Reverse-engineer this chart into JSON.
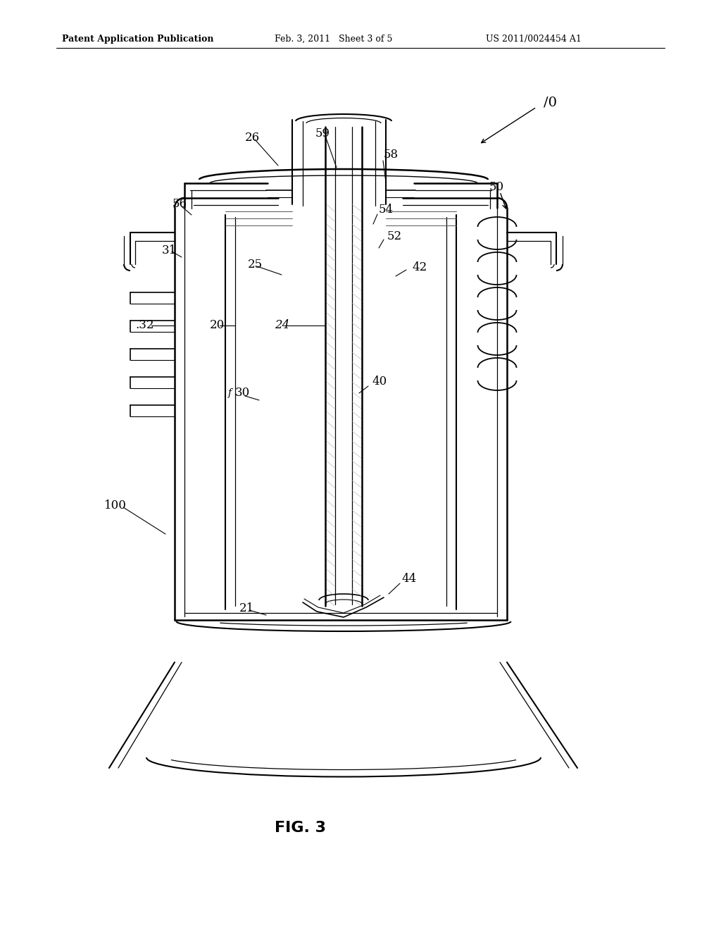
{
  "background_color": "#ffffff",
  "header_left": "Patent Application Publication",
  "header_mid": "Feb. 3, 2011   Sheet 3 of 5",
  "header_right": "US 2011/0024454 A1",
  "figure_label": "FIG. 3",
  "line_color": "#000000",
  "text_color": "#000000",
  "lw": 1.2
}
